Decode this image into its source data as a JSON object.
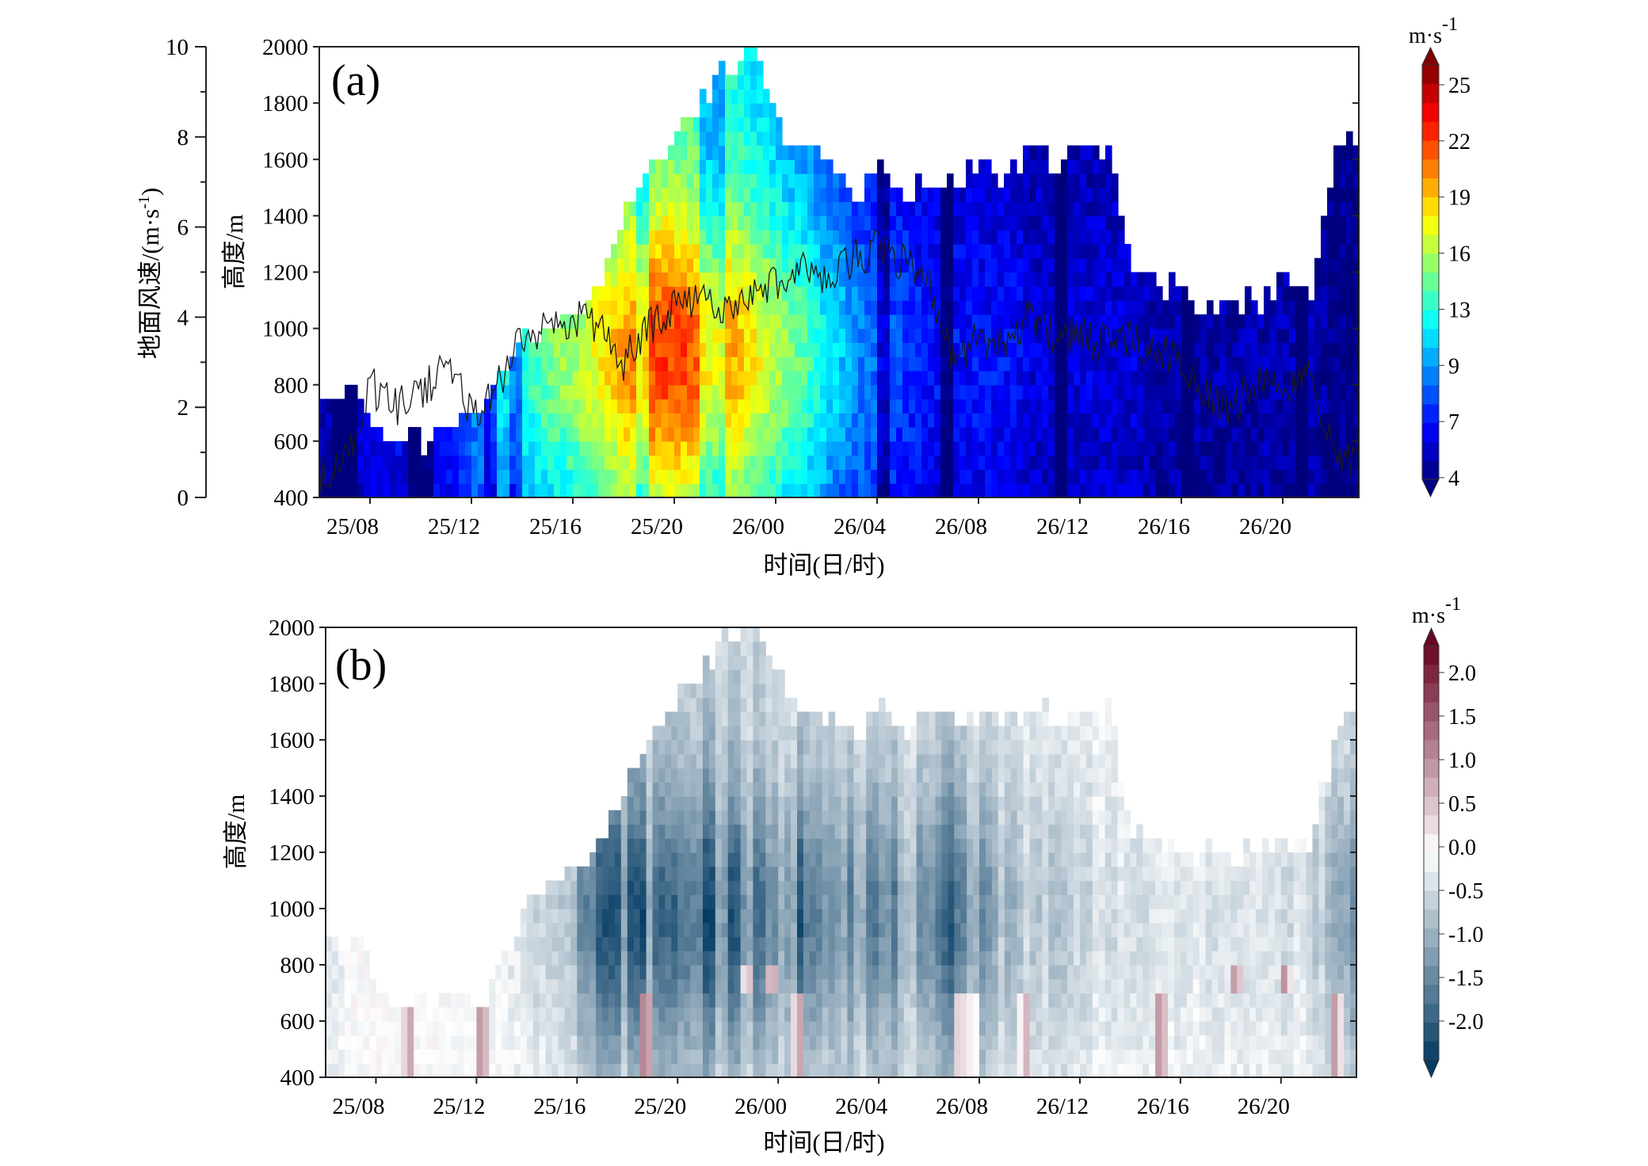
{
  "chart_data": [
    {
      "type": "heatmap",
      "panel_label": "(a)",
      "title": "",
      "xlabel": "时间(日/时)",
      "ylabel": "高度/m",
      "y2label_main": "地面风速/(m·s",
      "y2label_sup": "-1",
      "y2label_end": ")",
      "x_start_hour": 6,
      "x_end_hour": 47,
      "x_ticks": [
        {
          "hour": 8,
          "label": "25/08"
        },
        {
          "hour": 12,
          "label": "25/12"
        },
        {
          "hour": 16,
          "label": "25/16"
        },
        {
          "hour": 20,
          "label": "25/20"
        },
        {
          "hour": 24,
          "label": "26/00"
        },
        {
          "hour": 28,
          "label": "26/04"
        },
        {
          "hour": 32,
          "label": "26/08"
        },
        {
          "hour": 36,
          "label": "26/12"
        },
        {
          "hour": 40,
          "label": "26/16"
        },
        {
          "hour": 44,
          "label": "26/20"
        }
      ],
      "ylim": [
        400,
        2000
      ],
      "y_ticks": [
        "400",
        "600",
        "800",
        "1000",
        "1200",
        "1400",
        "1600",
        "1800",
        "2000"
      ],
      "y2lim": [
        0,
        10
      ],
      "y2_ticks": [
        "0",
        "2",
        "4",
        "6",
        "8",
        "10"
      ],
      "hours": [
        6,
        7,
        8,
        9,
        10,
        11,
        12,
        13,
        14,
        15,
        16,
        17,
        18,
        19,
        20,
        21,
        22,
        23,
        24,
        25,
        26,
        27,
        28,
        29,
        30,
        31,
        32,
        33,
        34,
        35,
        36,
        37,
        38,
        39,
        40,
        41,
        42,
        43,
        44,
        45,
        46,
        47
      ],
      "data_top_height_m": [
        750,
        800,
        650,
        600,
        600,
        650,
        700,
        850,
        950,
        1000,
        1050,
        1150,
        1400,
        1600,
        1650,
        1800,
        1950,
        2000,
        1700,
        1650,
        1600,
        1500,
        1550,
        1500,
        1500,
        1500,
        1600,
        1550,
        1650,
        1600,
        1650,
        1600,
        1200,
        1150,
        1150,
        1050,
        1100,
        1100,
        1200,
        1100,
        1650,
        1650
      ],
      "core_wind_speed_ms": [
        5,
        6,
        6,
        7,
        7,
        8,
        10,
        12,
        13,
        15,
        16,
        18,
        20,
        22,
        22,
        21,
        20,
        18,
        16,
        14,
        12,
        10,
        9,
        8,
        7,
        7,
        7,
        7,
        6,
        6,
        6,
        6,
        6,
        5,
        5,
        5,
        5,
        5,
        5,
        5,
        4,
        4
      ],
      "surface_wind_speed_ms": [
        0.5,
        0.8,
        2.5,
        2.0,
        2.3,
        3.0,
        1.8,
        2.5,
        3.5,
        3.7,
        4.0,
        3.8,
        3.0,
        3.8,
        4.2,
        4.4,
        4.2,
        4.6,
        4.8,
        5.0,
        4.8,
        5.3,
        5.5,
        5.2,
        4.9,
        3.0,
        3.5,
        3.3,
        4.0,
        3.6,
        3.6,
        3.4,
        3.5,
        3.2,
        3.1,
        2.3,
        2.0,
        2.6,
        2.5,
        2.7,
        1.0,
        0.8
      ],
      "colorbar": {
        "unit_main": "m·s",
        "unit_sup": "-1",
        "min": 4,
        "max": 26,
        "ticks": [
          {
            "v": 25,
            "label": "25"
          },
          {
            "v": 22,
            "label": "22"
          },
          {
            "v": 19,
            "label": "19"
          },
          {
            "v": 16,
            "label": "16"
          },
          {
            "v": 13,
            "label": "13"
          },
          {
            "v": 9,
            "label": "9"
          },
          {
            "v": 7,
            "label": "7"
          },
          {
            "v": 4,
            "label": "4"
          }
        ]
      },
      "line_color": "#1a1a1a"
    },
    {
      "type": "heatmap",
      "panel_label": "(b)",
      "xlabel": "时间(日/时)",
      "ylabel": "高度/m",
      "x_start_hour": 6,
      "x_end_hour": 47,
      "x_ticks": [
        {
          "hour": 8,
          "label": "25/08"
        },
        {
          "hour": 12,
          "label": "25/12"
        },
        {
          "hour": 16,
          "label": "25/16"
        },
        {
          "hour": 20,
          "label": "25/20"
        },
        {
          "hour": 24,
          "label": "26/00"
        },
        {
          "hour": 28,
          "label": "26/04"
        },
        {
          "hour": 32,
          "label": "26/08"
        },
        {
          "hour": 36,
          "label": "26/12"
        },
        {
          "hour": 40,
          "label": "26/16"
        },
        {
          "hour": 44,
          "label": "26/20"
        }
      ],
      "ylim": [
        400,
        2000
      ],
      "y_ticks": [
        "400",
        "600",
        "800",
        "1000",
        "1200",
        "1400",
        "1600",
        "1800",
        "2000"
      ],
      "hours": [
        6,
        7,
        8,
        9,
        10,
        11,
        12,
        13,
        14,
        15,
        16,
        17,
        18,
        19,
        20,
        21,
        22,
        23,
        24,
        25,
        26,
        27,
        28,
        29,
        30,
        31,
        32,
        33,
        34,
        35,
        36,
        37,
        38,
        39,
        40,
        41,
        42,
        43,
        44,
        45,
        46,
        47
      ],
      "data_top_height_m": [
        900,
        900,
        700,
        650,
        650,
        700,
        650,
        850,
        1000,
        1100,
        1150,
        1250,
        1450,
        1650,
        1750,
        1850,
        2000,
        2000,
        1800,
        1700,
        1700,
        1650,
        1700,
        1650,
        1700,
        1650,
        1700,
        1700,
        1700,
        1700,
        1700,
        1700,
        1250,
        1250,
        1200,
        1200,
        1150,
        1250,
        1250,
        1200,
        1600,
        1750
      ],
      "min_vertical_speed_ms": [
        -0.3,
        0,
        0,
        0,
        0,
        0,
        0,
        -0.2,
        -0.4,
        -0.8,
        -1.4,
        -1.8,
        -1.8,
        -1.6,
        -1.8,
        -2.0,
        -1.6,
        -1.4,
        -1.0,
        -2.0,
        -2.0,
        -1.6,
        -1.4,
        -1.2,
        -1.0,
        -1.8,
        -1.4,
        -0.8,
        -0.7,
        -0.7,
        -0.5,
        -0.4,
        -0.3,
        -0.3,
        -0.3,
        -0.3,
        -0.3,
        -0.3,
        -0.4,
        -0.4,
        -1.0,
        -1.2
      ],
      "colorbar": {
        "unit_main": "m·s",
        "unit_sup": "-1",
        "min": -2.5,
        "max": 2.5,
        "ticks": [
          {
            "v": 2.0,
            "label": "2.0"
          },
          {
            "v": 1.5,
            "label": "1.5"
          },
          {
            "v": 1.0,
            "label": "1.0"
          },
          {
            "v": 0.5,
            "label": "0.5"
          },
          {
            "v": 0.0,
            "label": "0.0"
          },
          {
            "v": -0.5,
            "label": "-0.5"
          },
          {
            "v": -1.0,
            "label": "-1.0"
          },
          {
            "v": -1.5,
            "label": "-1.5"
          },
          {
            "v": -2.0,
            "label": "-2.0"
          }
        ]
      }
    }
  ]
}
